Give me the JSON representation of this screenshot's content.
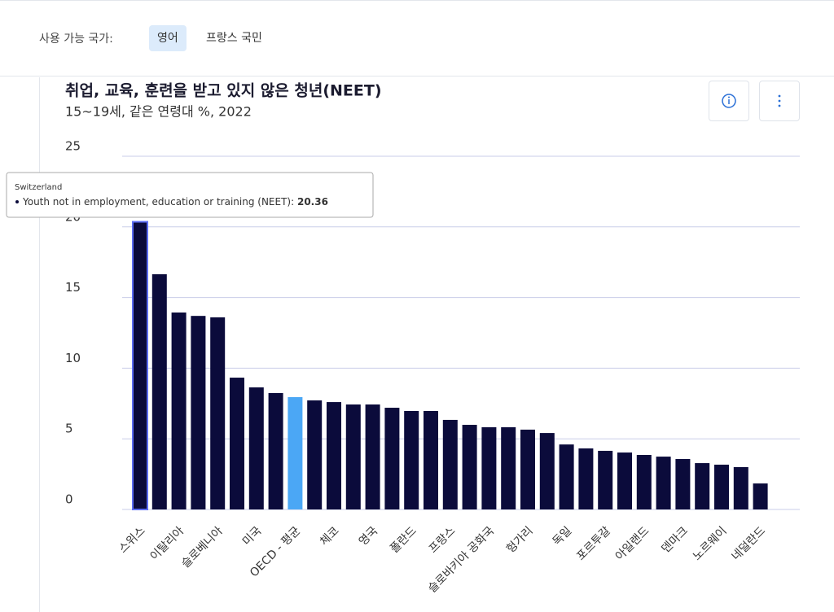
{
  "header": {
    "label": "사용 가능 국가:",
    "tabs": [
      "영어",
      "프랑스 국민"
    ]
  },
  "chart_data": {
    "type": "bar",
    "title": "취업, 교육, 훈련을 받고 있지 않은 청년(NEET)",
    "subtitle": "15~19세, 같은 연령대 %, 2022",
    "categories": [
      "스위스",
      null,
      "이탈리아",
      null,
      "슬로베니아",
      null,
      "미국",
      null,
      "OECD - 평균",
      null,
      "체코",
      null,
      "영국",
      null,
      "폴란드",
      null,
      "프랑스",
      null,
      "슬로바키아 공화국",
      null,
      "헝가리",
      null,
      "독일",
      null,
      "포르투갈",
      null,
      "아일랜드",
      null,
      "덴마크",
      null,
      "노르웨이",
      null,
      "네덜란드"
    ],
    "values": [
      20.36,
      16.65,
      13.94,
      13.7,
      13.6,
      9.33,
      8.64,
      8.24,
      7.95,
      7.72,
      7.6,
      7.43,
      7.43,
      7.2,
      6.97,
      6.97,
      6.34,
      5.99,
      5.82,
      5.82,
      5.65,
      5.41,
      4.6,
      4.32,
      4.15,
      4.03,
      3.86,
      3.74,
      3.57,
      3.28,
      3.17,
      3.0,
      1.84
    ],
    "colors": [
      "#0b0b3b",
      "#0b0b3b",
      "#0b0b3b",
      "#0b0b3b",
      "#0b0b3b",
      "#0b0b3b",
      "#0b0b3b",
      "#0b0b3b",
      "#4ba7f5",
      "#0b0b3b",
      "#0b0b3b",
      "#0b0b3b",
      "#0b0b3b",
      "#0b0b3b",
      "#0b0b3b",
      "#0b0b3b",
      "#0b0b3b",
      "#0b0b3b",
      "#0b0b3b",
      "#0b0b3b",
      "#0b0b3b",
      "#0b0b3b",
      "#0b0b3b",
      "#0b0b3b",
      "#0b0b3b",
      "#0b0b3b",
      "#0b0b3b",
      "#0b0b3b",
      "#0b0b3b",
      "#0b0b3b",
      "#0b0b3b",
      "#0b0b3b",
      "#0b0b3b"
    ],
    "ylim": [
      0,
      25
    ],
    "yticks": [
      0,
      5,
      10,
      15,
      20,
      25
    ],
    "grid": true,
    "tooltip": {
      "title": "Switzerland",
      "label": "Youth not in employment, education or training (NEET):"
    }
  }
}
